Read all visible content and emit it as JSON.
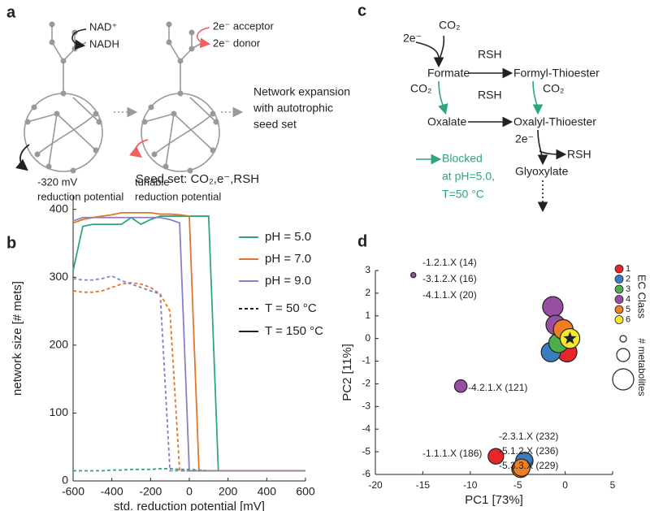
{
  "panel_labels": [
    "a",
    "b",
    "c",
    "d"
  ],
  "panel_a": {
    "nad": "NAD⁺",
    "nadh": "NADH",
    "acceptor": "2e⁻ acceptor",
    "donor": "2e⁻ donor",
    "expansion": [
      "Network expansion",
      "with autotrophic",
      "seed set"
    ],
    "left_caption": [
      "-320 mV",
      "reduction potential"
    ],
    "right_caption": [
      "tunable",
      "reduction potential"
    ]
  },
  "panel_c": {
    "co2_top": "CO₂",
    "e_top": "2e⁻",
    "rsh_1": "RSH",
    "formate": "Formate",
    "formyl": "Formyl-Thioester",
    "co2_left": "CO₂",
    "rsh_2": "RSH",
    "co2_right": "CO₂",
    "oxalate": "Oxalate",
    "oxalyl": "Oxalyl-Thioester",
    "e_bottom": "2e⁻",
    "rsh_3": "RSH",
    "glyoxylate": "Glyoxylate",
    "blocked": [
      "Blocked",
      "at pH=5.0,",
      "T=50 °C"
    ]
  },
  "chart_data": [
    {
      "type": "line",
      "title": "Seed set: CO₂,e⁻,RSH",
      "x_label": "std. reduction potential [mV]",
      "y_label": "network size [# mets]",
      "x": [
        -600,
        -550,
        -500,
        -450,
        -400,
        -350,
        -300,
        -250,
        -200,
        -150,
        -100,
        -50,
        0,
        50,
        100,
        150,
        200,
        250,
        300,
        350,
        400,
        450,
        500,
        550,
        600
      ],
      "xlim": [
        -600,
        600
      ],
      "xticks": [
        -600,
        -400,
        -200,
        0,
        200,
        400,
        600
      ],
      "ylim": [
        0,
        420
      ],
      "yticks": [
        0,
        100,
        200,
        300,
        400
      ],
      "series": [
        {
          "color": "#2fa57f",
          "dash": false,
          "values": [
            310,
            375,
            378,
            378,
            378,
            378,
            388,
            378,
            385,
            390,
            390,
            390,
            390,
            390,
            390,
            15,
            15,
            15,
            15,
            15,
            15,
            15,
            15,
            15,
            15
          ]
        },
        {
          "color": "#e0772a",
          "dash": false,
          "values": [
            380,
            385,
            388,
            390,
            392,
            395,
            395,
            395,
            395,
            393,
            393,
            392,
            390,
            15,
            15,
            15,
            15,
            15,
            15,
            15,
            15,
            15,
            15,
            15,
            15
          ]
        },
        {
          "color": "#8b7fc4",
          "dash": false,
          "values": [
            383,
            388,
            388,
            388,
            388,
            388,
            388,
            388,
            388,
            388,
            385,
            380,
            15,
            15,
            15,
            15,
            15,
            15,
            15,
            15,
            15,
            15,
            15,
            15,
            15
          ]
        },
        {
          "color": "#2fa57f",
          "dash": true,
          "values": [
            15,
            15,
            15,
            15,
            16,
            16,
            17,
            17,
            17,
            18,
            18,
            17,
            17,
            16,
            15,
            15,
            15,
            15,
            15,
            15,
            15,
            15,
            15,
            15,
            15
          ]
        },
        {
          "color": "#e0772a",
          "dash": true,
          "values": [
            280,
            278,
            278,
            280,
            285,
            290,
            292,
            290,
            285,
            275,
            250,
            15,
            15,
            15,
            15,
            15,
            15,
            15,
            15,
            15,
            15,
            15,
            15,
            15,
            15
          ]
        },
        {
          "color": "#8b7fc4",
          "dash": true,
          "values": [
            298,
            296,
            296,
            298,
            302,
            295,
            290,
            285,
            280,
            275,
            15,
            15,
            15,
            15,
            15,
            15,
            15,
            15,
            15,
            15,
            15,
            15,
            15,
            15,
            15
          ]
        }
      ],
      "legend": {
        "colors": [
          {
            "label": "pH = 5.0",
            "color": "#2fa57f"
          },
          {
            "label": "pH = 7.0",
            "color": "#e0772a"
          },
          {
            "label": "pH = 9.0",
            "color": "#8b7fc4"
          }
        ],
        "styles": [
          {
            "label": "T = 50 °C",
            "dash": true
          },
          {
            "label": "T = 150 °C",
            "dash": false
          }
        ]
      }
    },
    {
      "type": "scatter",
      "x_label": "PC1 [73%]",
      "y_label": "PC2 [11%]",
      "xlim": [
        -20,
        5
      ],
      "xticks": [
        -20,
        -15,
        -10,
        -5,
        0,
        5
      ],
      "ylim": [
        -6,
        3
      ],
      "yticks": [
        -6,
        -5,
        -4,
        -3,
        -2,
        -1,
        0,
        1,
        2,
        3
      ],
      "legend_title": "EC Class",
      "size_legend_title": "# metabolites",
      "series": [
        {
          "name": "1",
          "color": "#e8262a",
          "x": [
            0.2,
            -7.3,
            -16
          ],
          "y": [
            -0.6,
            -5.2,
            2.8
          ],
          "sizes": [
            300,
            186,
            14
          ]
        },
        {
          "name": "2",
          "color": "#3a7ebf",
          "x": [
            -1.5,
            -4.3
          ],
          "y": [
            -0.6,
            -5.4
          ],
          "sizes": [
            290,
            232
          ]
        },
        {
          "name": "3",
          "color": "#4daf4a",
          "x": [
            -0.7,
            -16
          ],
          "y": [
            -0.2,
            2.8
          ],
          "sizes": [
            290,
            16
          ]
        },
        {
          "name": "4",
          "color": "#984ea3",
          "x": [
            -1.3,
            -1,
            -16,
            -11
          ],
          "y": [
            1.4,
            0.6,
            2.8,
            -2.1
          ],
          "sizes": [
            320,
            290,
            20,
            121
          ]
        },
        {
          "name": "5",
          "color": "#f07f22",
          "x": [
            -0.2,
            -4.7,
            -4.6
          ],
          "y": [
            0.4,
            -5.75,
            -5.7
          ],
          "sizes": [
            300,
            236,
            229
          ]
        },
        {
          "name": "6",
          "color": "#f7e92a",
          "x": [
            0.5
          ],
          "y": [
            0
          ],
          "sizes": [
            300
          ],
          "marker": "star"
        }
      ],
      "annotations": [
        "-1.2.1.X (14)",
        "-3.1.2.X (16)",
        "-4.1.1.X (20)",
        "-4.2.1.X (121)",
        "-1.1.1.X (186)",
        "-2.3.1.X (232)",
        "-5.1.2.X (236)",
        "-5.3.3.X (229)"
      ]
    }
  ]
}
